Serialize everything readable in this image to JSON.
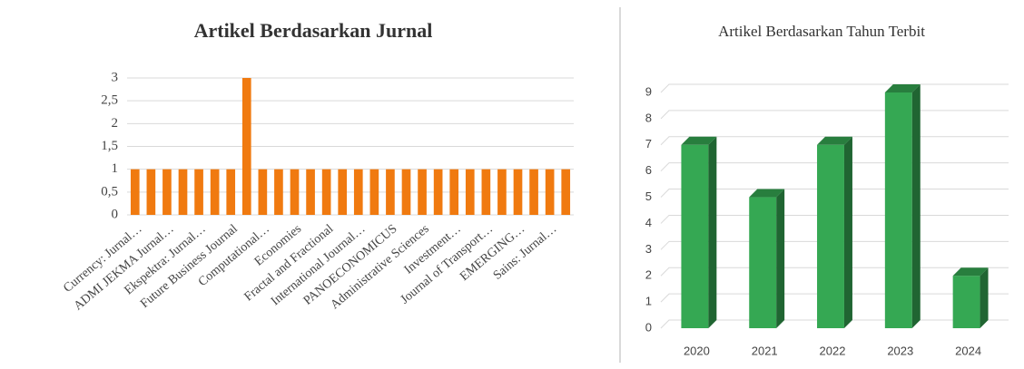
{
  "chart_data": [
    {
      "type": "bar",
      "title": "Artikel Berdasarkan Jurnal",
      "categories": [
        "Currency: Jurnal…",
        null,
        "ADMI JEKMA Jurnal…",
        null,
        "Ekspektra: Jurnal…",
        null,
        "Future Business Journal",
        null,
        "Computational…",
        null,
        "Economies",
        null,
        "Fractal and Fractional",
        null,
        "International Journal…",
        null,
        "PANOECONOMICUS",
        null,
        "Administrative Sciences",
        null,
        "Investment…",
        null,
        "Journal of Transport…",
        null,
        "EMERGING…",
        null,
        "Sains: Jurnal…",
        null
      ],
      "values": [
        1,
        1,
        1,
        1,
        1,
        1,
        1,
        3,
        1,
        1,
        1,
        1,
        1,
        1,
        1,
        1,
        1,
        1,
        1,
        1,
        1,
        1,
        1,
        1,
        1,
        1,
        1,
        1
      ],
      "color": "#f07a10",
      "ylim": [
        0,
        3
      ],
      "yticks": [
        0,
        {
          "value": 0.5,
          "label": "0,5"
        },
        1,
        {
          "value": 1.5,
          "label": "1,5"
        },
        2,
        {
          "value": 2.5,
          "label": "2,5"
        },
        3
      ],
      "grid": true,
      "three_d": false
    },
    {
      "type": "bar",
      "title": "Artikel Berdasarkan Tahun Terbit",
      "categories": [
        "2020",
        "2021",
        "2022",
        "2023",
        "2024"
      ],
      "values": [
        7,
        5,
        7,
        9,
        2
      ],
      "color": "#35a853",
      "ylim": [
        0,
        9
      ],
      "yticks": [
        0,
        1,
        2,
        3,
        4,
        5,
        6,
        7,
        8,
        9
      ],
      "grid": true,
      "three_d": true
    }
  ]
}
